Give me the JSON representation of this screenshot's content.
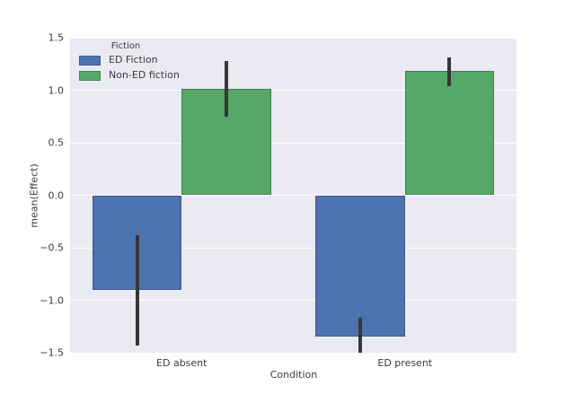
{
  "figure": {
    "background": "#ffffff",
    "plot_background": "#eaeaf2",
    "grid_color": "#ffffff",
    "text_color": "#3a3a3a",
    "errorbar_color": "#363636"
  },
  "chart_data": {
    "type": "bar",
    "title": "",
    "xlabel": "Condition",
    "ylabel": "mean(Effect)",
    "categories": [
      "ED absent",
      "ED present"
    ],
    "series": [
      {
        "name": "ED Fiction",
        "color": "#4c72b0",
        "values": [
          -0.9,
          -1.35
        ],
        "error_intervals": [
          [
            -0.38,
            -1.43
          ],
          [
            -1.17,
            -1.5
          ]
        ]
      },
      {
        "name": "Non-ED fiction",
        "color": "#55a868",
        "values": [
          1.01,
          1.18
        ],
        "error_intervals": [
          [
            0.75,
            1.28
          ],
          [
            1.04,
            1.31
          ]
        ]
      }
    ],
    "ylim": [
      -1.5,
      1.5
    ],
    "yticks": [
      1.5,
      1.0,
      0.5,
      0.0,
      -0.5,
      -1.0,
      -1.5
    ],
    "grid": "horizontal-white-on-gray",
    "legend_title": "Fiction",
    "legend_position": "upper left"
  }
}
